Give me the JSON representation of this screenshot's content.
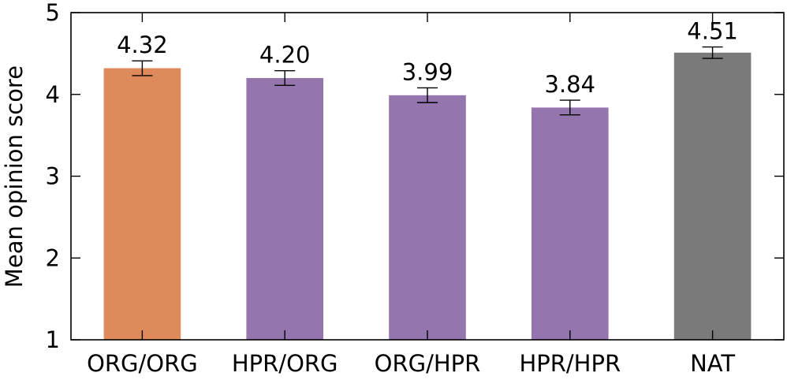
{
  "chart_data": {
    "type": "bar",
    "title": "",
    "xlabel": "",
    "ylabel": "Mean opinion score",
    "ylim": [
      1,
      5
    ],
    "yticks": [
      1,
      2,
      3,
      4,
      5
    ],
    "grid": false,
    "categories": [
      "ORG/ORG",
      "HPR/ORG",
      "ORG/HPR",
      "HPR/HPR",
      "NAT"
    ],
    "values": [
      4.32,
      4.2,
      3.99,
      3.84,
      4.51
    ],
    "value_labels": [
      "4.32",
      "4.20",
      "3.99",
      "3.84",
      "4.51"
    ],
    "error": [
      0.09,
      0.09,
      0.09,
      0.09,
      0.07
    ],
    "colors": [
      "#de8a5b",
      "#9475ad",
      "#9475ad",
      "#9475ad",
      "#7a7a7a"
    ]
  }
}
